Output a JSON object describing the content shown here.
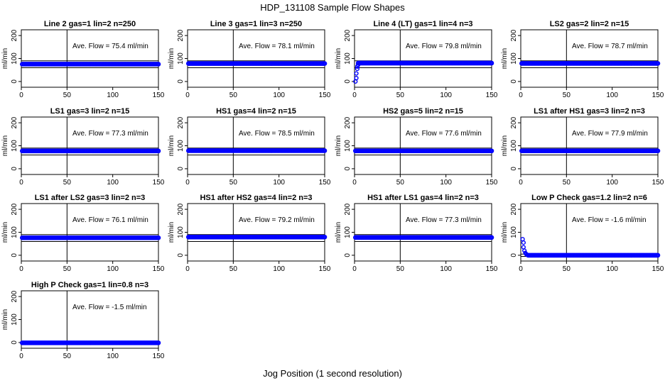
{
  "figure": {
    "title": "HDP_131108  Sample Flow Shapes",
    "xlabel": "Jog Position (1 second resolution)"
  },
  "colors": {
    "points": "#0000ff",
    "axes": "#000000",
    "background": "#ffffff"
  },
  "chart_data": [
    {
      "type": "scatter",
      "title": "Line 2 gas=1 lin=2 n=250",
      "ylabel": "ml/min",
      "annotation": "Ave. Flow = 75.4  ml/min",
      "mean": 75.4,
      "xlim": [
        0,
        150
      ],
      "ylim": [
        -25,
        225
      ],
      "xticks": [
        0,
        50,
        100,
        150
      ],
      "yticks": [
        0,
        100,
        200
      ],
      "hlines": [
        60,
        90
      ],
      "vline": 50,
      "x_range": [
        1,
        150
      ],
      "y_level": 75.4
    },
    {
      "type": "scatter",
      "title": "Line 3 gas=1 lin=3 n=250",
      "ylabel": "ml/min",
      "annotation": "Ave. Flow = 78.1  ml/min",
      "mean": 78.1,
      "xlim": [
        0,
        150
      ],
      "ylim": [
        -25,
        225
      ],
      "xticks": [
        0,
        50,
        100,
        150
      ],
      "yticks": [
        0,
        100,
        200
      ],
      "hlines": [
        60,
        90
      ],
      "vline": 50,
      "x_range": [
        1,
        150
      ],
      "y_level": 78.1
    },
    {
      "type": "scatter",
      "title": "Line 4 (LT) gas=1 lin=4 n=3",
      "ylabel": "ml/min",
      "annotation": "Ave. Flow = 79.8  ml/min",
      "mean": 79.8,
      "xlim": [
        0,
        150
      ],
      "ylim": [
        -25,
        225
      ],
      "xticks": [
        0,
        50,
        100,
        150
      ],
      "yticks": [
        0,
        100,
        200
      ],
      "hlines": [
        60,
        90
      ],
      "vline": 50,
      "x_range": [
        4,
        150
      ],
      "y_level": 80,
      "start_points": [
        [
          1,
          0
        ],
        [
          2,
          15
        ],
        [
          2,
          35
        ],
        [
          3,
          55
        ],
        [
          3,
          65
        ],
        [
          4,
          72
        ]
      ]
    },
    {
      "type": "scatter",
      "title": "LS2 gas=2 lin=2 n=15",
      "ylabel": "ml/min",
      "annotation": "Ave. Flow = 78.7  ml/min",
      "mean": 78.7,
      "xlim": [
        0,
        150
      ],
      "ylim": [
        -25,
        225
      ],
      "xticks": [
        0,
        50,
        100,
        150
      ],
      "yticks": [
        0,
        100,
        200
      ],
      "hlines": [
        60,
        90
      ],
      "vline": 50,
      "x_range": [
        1,
        150
      ],
      "y_level": 78.7
    },
    {
      "type": "scatter",
      "title": "LS1 gas=3 lin=2 n=15",
      "ylabel": "ml/min",
      "annotation": "Ave. Flow = 77.3  ml/min",
      "mean": 77.3,
      "xlim": [
        0,
        150
      ],
      "ylim": [
        -25,
        225
      ],
      "xticks": [
        0,
        50,
        100,
        150
      ],
      "yticks": [
        0,
        100,
        200
      ],
      "hlines": [
        60,
        90
      ],
      "vline": 50,
      "x_range": [
        1,
        150
      ],
      "y_level": 77.3
    },
    {
      "type": "scatter",
      "title": "HS1 gas=4 lin=2 n=15",
      "ylabel": "ml/min",
      "annotation": "Ave. Flow = 78.5  ml/min",
      "mean": 78.5,
      "xlim": [
        0,
        150
      ],
      "ylim": [
        -25,
        225
      ],
      "xticks": [
        0,
        50,
        100,
        150
      ],
      "yticks": [
        0,
        100,
        200
      ],
      "hlines": [
        60,
        90
      ],
      "vline": 50,
      "x_range": [
        1,
        150
      ],
      "y_level": 78.5
    },
    {
      "type": "scatter",
      "title": "HS2 gas=5 lin=2 n=15",
      "ylabel": "ml/min",
      "annotation": "Ave. Flow = 77.6  ml/min",
      "mean": 77.6,
      "xlim": [
        0,
        150
      ],
      "ylim": [
        -25,
        225
      ],
      "xticks": [
        0,
        50,
        100,
        150
      ],
      "yticks": [
        0,
        100,
        200
      ],
      "hlines": [
        60,
        90
      ],
      "vline": 50,
      "x_range": [
        1,
        150
      ],
      "y_level": 77.6
    },
    {
      "type": "scatter",
      "title": "LS1 after HS1 gas=3 lin=2 n=3",
      "ylabel": "ml/min",
      "annotation": "Ave. Flow = 77.9  ml/min",
      "mean": 77.9,
      "xlim": [
        0,
        150
      ],
      "ylim": [
        -25,
        225
      ],
      "xticks": [
        0,
        50,
        100,
        150
      ],
      "yticks": [
        0,
        100,
        200
      ],
      "hlines": [
        60,
        90
      ],
      "vline": 50,
      "x_range": [
        1,
        150
      ],
      "y_level": 77.9
    },
    {
      "type": "scatter",
      "title": "LS1 after LS2 gas=3 lin=2 n=3",
      "ylabel": "ml/min",
      "annotation": "Ave. Flow = 76.1  ml/min",
      "mean": 76.1,
      "xlim": [
        0,
        150
      ],
      "ylim": [
        -25,
        225
      ],
      "xticks": [
        0,
        50,
        100,
        150
      ],
      "yticks": [
        0,
        100,
        200
      ],
      "hlines": [
        60,
        90
      ],
      "vline": 50,
      "x_range": [
        1,
        150
      ],
      "y_level": 76.1
    },
    {
      "type": "scatter",
      "title": "HS1 after HS2 gas=4 lin=2 n=3",
      "ylabel": "ml/min",
      "annotation": "Ave. Flow = 79.2  ml/min",
      "mean": 79.2,
      "xlim": [
        0,
        150
      ],
      "ylim": [
        -25,
        225
      ],
      "xticks": [
        0,
        50,
        100,
        150
      ],
      "yticks": [
        0,
        100,
        200
      ],
      "hlines": [
        60,
        90
      ],
      "vline": 50,
      "x_range": [
        1,
        150
      ],
      "y_level": 79.2
    },
    {
      "type": "scatter",
      "title": "HS1 after LS1 gas=4 lin=2 n=3",
      "ylabel": "ml/min",
      "annotation": "Ave. Flow = 77.3  ml/min",
      "mean": 77.3,
      "xlim": [
        0,
        150
      ],
      "ylim": [
        -25,
        225
      ],
      "xticks": [
        0,
        50,
        100,
        150
      ],
      "yticks": [
        0,
        100,
        200
      ],
      "hlines": [
        60,
        90
      ],
      "vline": 50,
      "x_range": [
        1,
        150
      ],
      "y_level": 77.3
    },
    {
      "type": "scatter",
      "title": "Low P Check gas=1.2 lin=2 n=6",
      "ylabel": "ml/min",
      "annotation": "Ave. Flow = -1.6  ml/min",
      "mean": -1.6,
      "xlim": [
        0,
        150
      ],
      "ylim": [
        -25,
        225
      ],
      "xticks": [
        0,
        50,
        100,
        150
      ],
      "yticks": [
        0,
        100,
        200
      ],
      "hlines": [
        -5,
        5
      ],
      "vline": 50,
      "x_range": [
        8,
        150
      ],
      "y_level": 0,
      "start_points": [
        [
          2,
          70
        ],
        [
          3,
          55
        ],
        [
          3,
          35
        ],
        [
          4,
          20
        ],
        [
          5,
          10
        ],
        [
          6,
          5
        ],
        [
          7,
          2
        ]
      ]
    },
    {
      "type": "scatter",
      "title": "High P Check gas=1 lin=0.8 n=3",
      "ylabel": "ml/min",
      "annotation": "Ave. Flow = -1.5  ml/min",
      "mean": -1.5,
      "xlim": [
        0,
        150
      ],
      "ylim": [
        -25,
        225
      ],
      "xticks": [
        0,
        50,
        100,
        150
      ],
      "yticks": [
        0,
        100,
        200
      ],
      "hlines": [
        -5,
        5
      ],
      "vline": 50,
      "x_range": [
        1,
        150
      ],
      "y_level": -1.5
    }
  ]
}
